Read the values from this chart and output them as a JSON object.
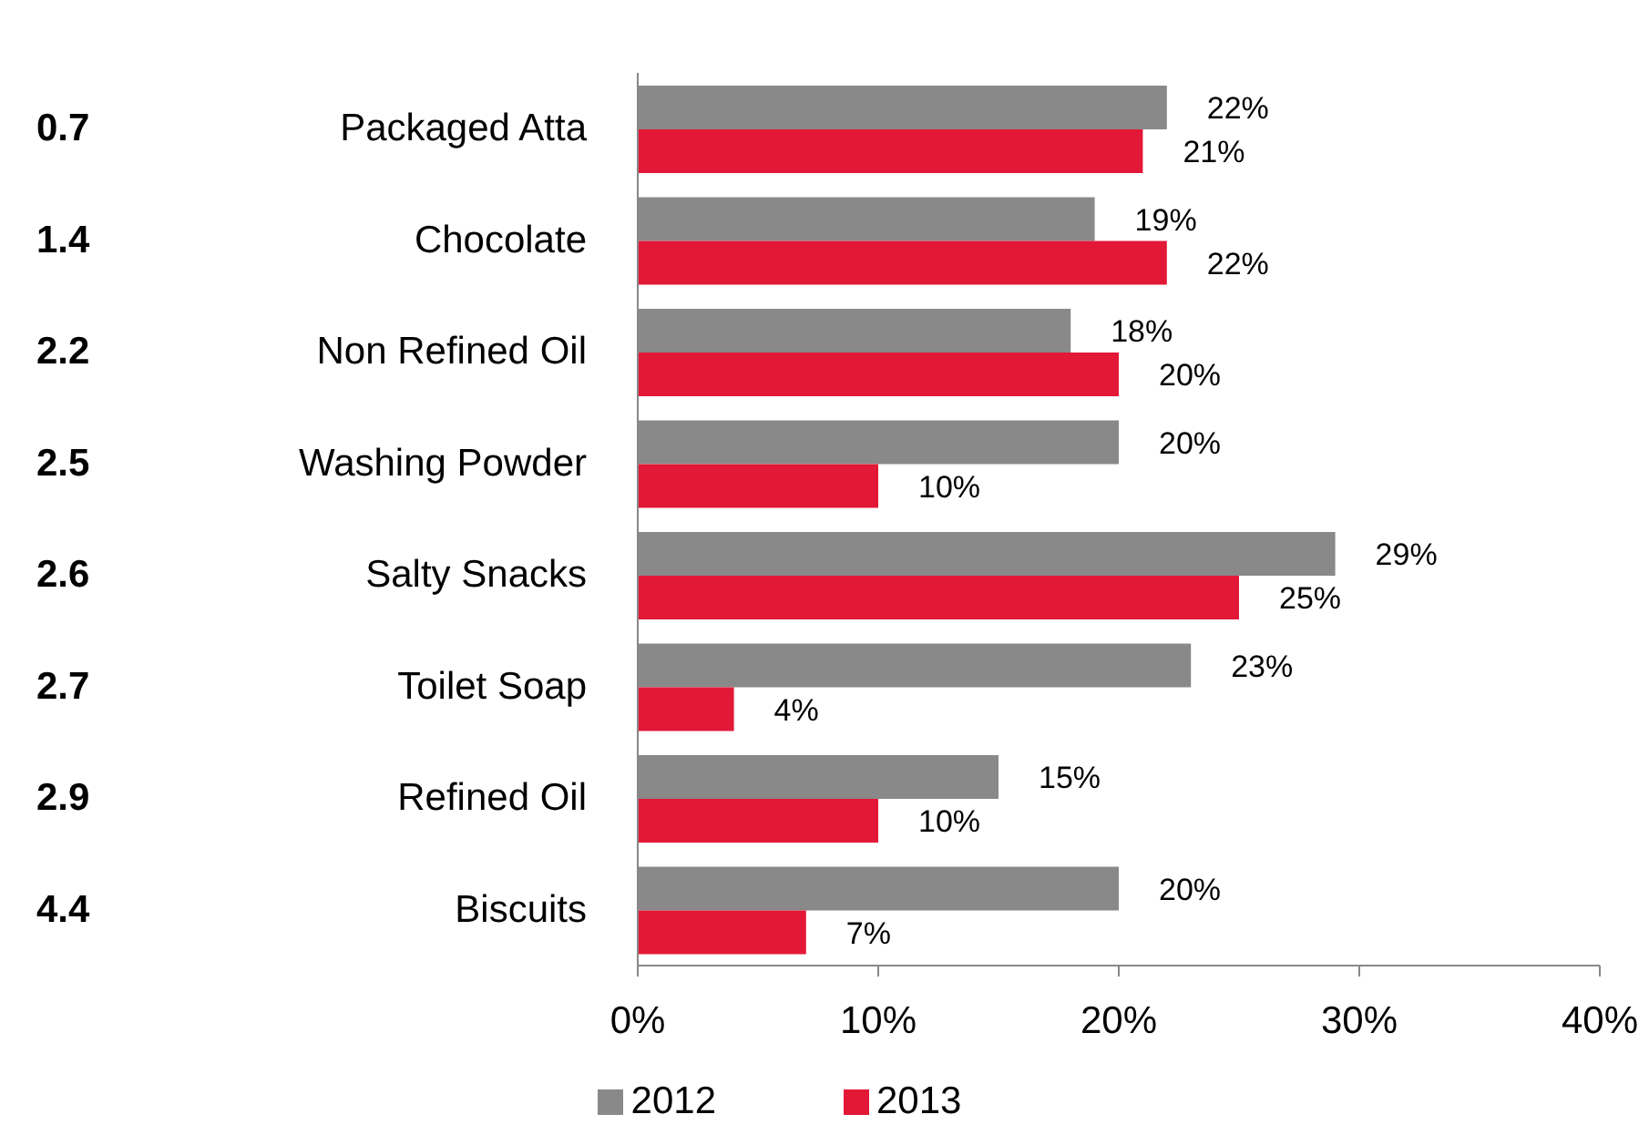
{
  "chart_data": {
    "type": "bar",
    "orientation": "horizontal",
    "categories": [
      "Packaged Atta",
      "Chocolate",
      "Non Refined Oil",
      "Washing Powder",
      "Salty Snacks",
      "Toilet Soap",
      "Refined Oil",
      "Biscuits"
    ],
    "series": [
      {
        "name": "2012",
        "color": "#898989",
        "values": [
          22,
          19,
          18,
          20,
          29,
          23,
          15,
          20
        ],
        "value_labels": [
          "22%",
          "19%",
          "18%",
          "20%",
          "29%",
          "23%",
          "15%",
          "20%"
        ]
      },
      {
        "name": "2013",
        "color": "#e31837",
        "values": [
          21,
          22,
          20,
          10,
          25,
          4,
          10,
          7
        ],
        "value_labels": [
          "21%",
          "22%",
          "20%",
          "10%",
          "25%",
          "4%",
          "10%",
          "7%"
        ]
      }
    ],
    "annotations": [
      "0.7",
      "1.4",
      "2.2",
      "2.5",
      "2.6",
      "2.7",
      "2.9",
      "4.4"
    ],
    "xlim": [
      0,
      40
    ],
    "xticks": [
      {
        "value": 0,
        "label": "0%"
      },
      {
        "value": 10,
        "label": "10%"
      },
      {
        "value": 20,
        "label": "20%"
      },
      {
        "value": 30,
        "label": "30%"
      },
      {
        "value": 40,
        "label": "40%"
      }
    ],
    "grid": false,
    "legend": "bottom"
  }
}
